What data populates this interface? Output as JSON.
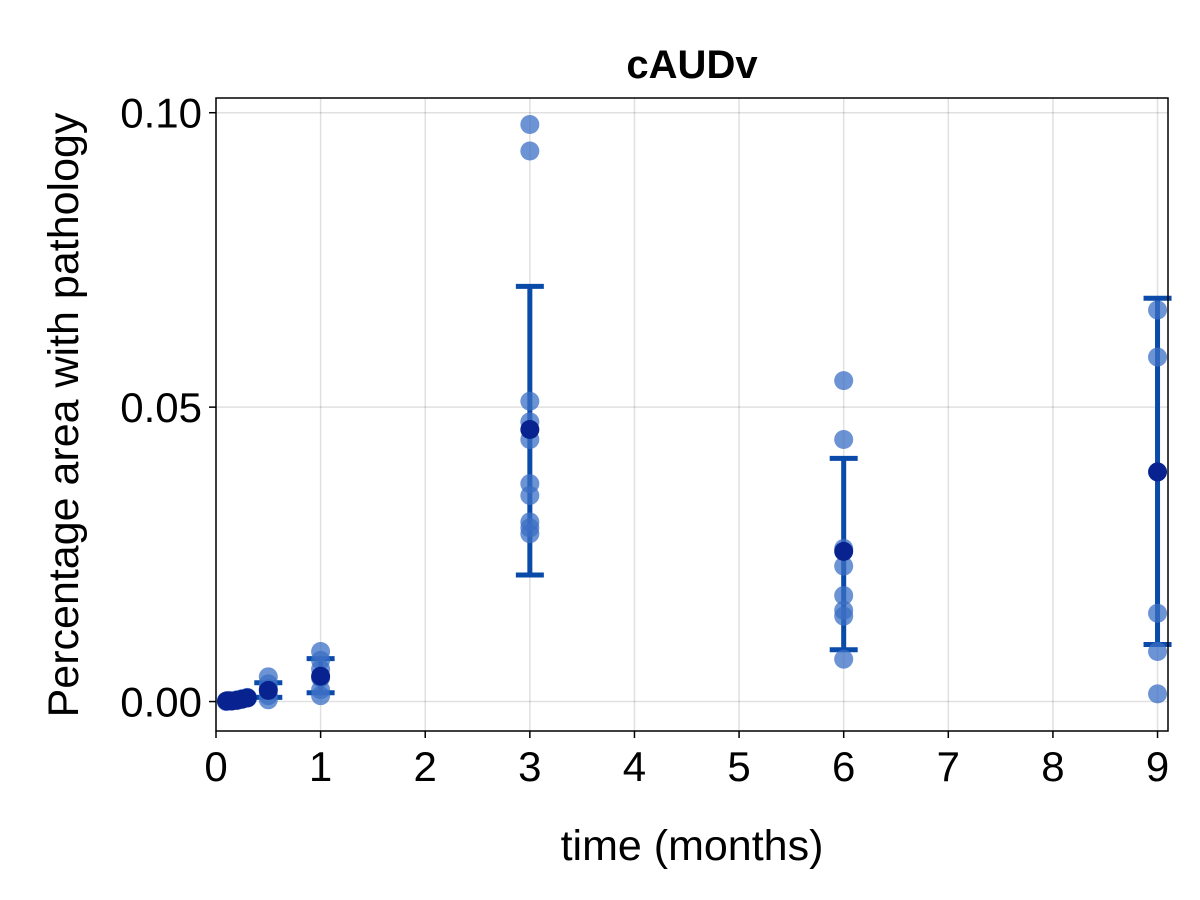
{
  "chart_data": {
    "type": "scatter",
    "title": "cAUDv",
    "xlabel": "time (months)",
    "ylabel": "Percentage area with pathology",
    "xlim": [
      0,
      9.1
    ],
    "ylim": [
      -0.005,
      0.1025
    ],
    "xticks": [
      0,
      1,
      2,
      3,
      4,
      5,
      6,
      7,
      8,
      9
    ],
    "xtick_labels": [
      "0",
      "1",
      "2",
      "3",
      "4",
      "5",
      "6",
      "7",
      "8",
      "9"
    ],
    "yticks": [
      0.0,
      0.05,
      0.1
    ],
    "ytick_labels": [
      "0.00",
      "0.05",
      "0.10"
    ],
    "grid": true,
    "colors": {
      "points": "#3b6fc4",
      "mean": "#08238f",
      "errorbar": "#0a4aa8"
    },
    "series": [
      {
        "points": [
          {
            "x": 0.1,
            "y": 0.0
          },
          {
            "x": 0.12,
            "y": 0.0002
          },
          {
            "x": 0.15,
            "y": 0.0001
          },
          {
            "x": 0.2,
            "y": 0.0003
          },
          {
            "x": 0.25,
            "y": 0.0005
          },
          {
            "x": 0.3,
            "y": 0.0007
          },
          {
            "x": 0.5,
            "y": 0.0042
          },
          {
            "x": 0.5,
            "y": 0.003
          },
          {
            "x": 0.5,
            "y": 0.0022
          },
          {
            "x": 0.5,
            "y": 0.001
          },
          {
            "x": 0.5,
            "y": 0.0003
          },
          {
            "x": 1,
            "y": 0.0085
          },
          {
            "x": 1,
            "y": 0.007
          },
          {
            "x": 1,
            "y": 0.0055
          },
          {
            "x": 1,
            "y": 0.004
          },
          {
            "x": 1,
            "y": 0.002
          },
          {
            "x": 1,
            "y": 0.001
          },
          {
            "x": 3,
            "y": 0.098
          },
          {
            "x": 3,
            "y": 0.0935
          },
          {
            "x": 3,
            "y": 0.051
          },
          {
            "x": 3,
            "y": 0.0475
          },
          {
            "x": 3,
            "y": 0.0445
          },
          {
            "x": 3,
            "y": 0.037
          },
          {
            "x": 3,
            "y": 0.035
          },
          {
            "x": 3,
            "y": 0.0305
          },
          {
            "x": 3,
            "y": 0.0295
          },
          {
            "x": 3,
            "y": 0.0285
          },
          {
            "x": 6,
            "y": 0.0545
          },
          {
            "x": 6,
            "y": 0.0445
          },
          {
            "x": 6,
            "y": 0.026
          },
          {
            "x": 6,
            "y": 0.023
          },
          {
            "x": 6,
            "y": 0.018
          },
          {
            "x": 6,
            "y": 0.0155
          },
          {
            "x": 6,
            "y": 0.0145
          },
          {
            "x": 6,
            "y": 0.0072
          },
          {
            "x": 9,
            "y": 0.0665
          },
          {
            "x": 9,
            "y": 0.0585
          },
          {
            "x": 9,
            "y": 0.015
          },
          {
            "x": 9,
            "y": 0.0085
          },
          {
            "x": 9,
            "y": 0.0013
          }
        ],
        "means": [
          {
            "x": 0.1,
            "y": 0.0001
          },
          {
            "x": 0.15,
            "y": 0.0001
          },
          {
            "x": 0.2,
            "y": 0.0002
          },
          {
            "x": 0.25,
            "y": 0.0004
          },
          {
            "x": 0.3,
            "y": 0.0006
          },
          {
            "x": 0.5,
            "y": 0.0019
          },
          {
            "x": 1,
            "y": 0.0043
          },
          {
            "x": 3,
            "y": 0.0462
          },
          {
            "x": 6,
            "y": 0.0255
          },
          {
            "x": 9,
            "y": 0.039
          }
        ],
        "error_bars": [
          {
            "x": 0.5,
            "low": 0.0007,
            "high": 0.0032
          },
          {
            "x": 1,
            "low": 0.0015,
            "high": 0.0073
          },
          {
            "x": 3,
            "low": 0.0215,
            "high": 0.0705
          },
          {
            "x": 6,
            "low": 0.0088,
            "high": 0.0413
          },
          {
            "x": 9,
            "low": 0.0097,
            "high": 0.0685
          }
        ]
      }
    ]
  }
}
